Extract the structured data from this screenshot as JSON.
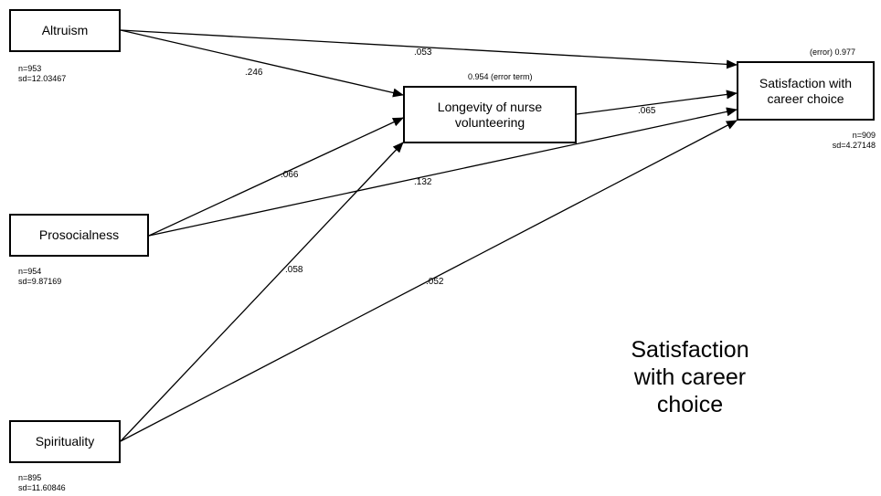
{
  "nodes": {
    "altruism": {
      "label": "Altruism",
      "n": "n=953",
      "sd": "sd=12.03467"
    },
    "prosocialness": {
      "label": "Prosocialness",
      "n": "n=954",
      "sd": "sd=9.87169"
    },
    "spirituality": {
      "label": "Spirituality",
      "n": "n=895",
      "sd": "sd=11.60846"
    },
    "longevity": {
      "label_line1": "Longevity of nurse",
      "label_line2": "volunteering",
      "error": "0.954 (error term)"
    },
    "satisfaction": {
      "label_line1": "Satisfaction with",
      "label_line2": "career choice",
      "n": "n=909",
      "sd": "sd=4.27148",
      "error": "(error) 0.977"
    }
  },
  "paths": {
    "altruism_satisfaction": ".053",
    "altruism_longevity": ".246",
    "prosocialness_longevity": ".066",
    "prosocialness_satisfaction": ".132",
    "spirituality_longevity": ".058",
    "spirituality_satisfaction": ".052",
    "longevity_satisfaction": ".065"
  },
  "caption": {
    "line1": "Satisfaction",
    "line2": "with career",
    "line3": "choice"
  }
}
